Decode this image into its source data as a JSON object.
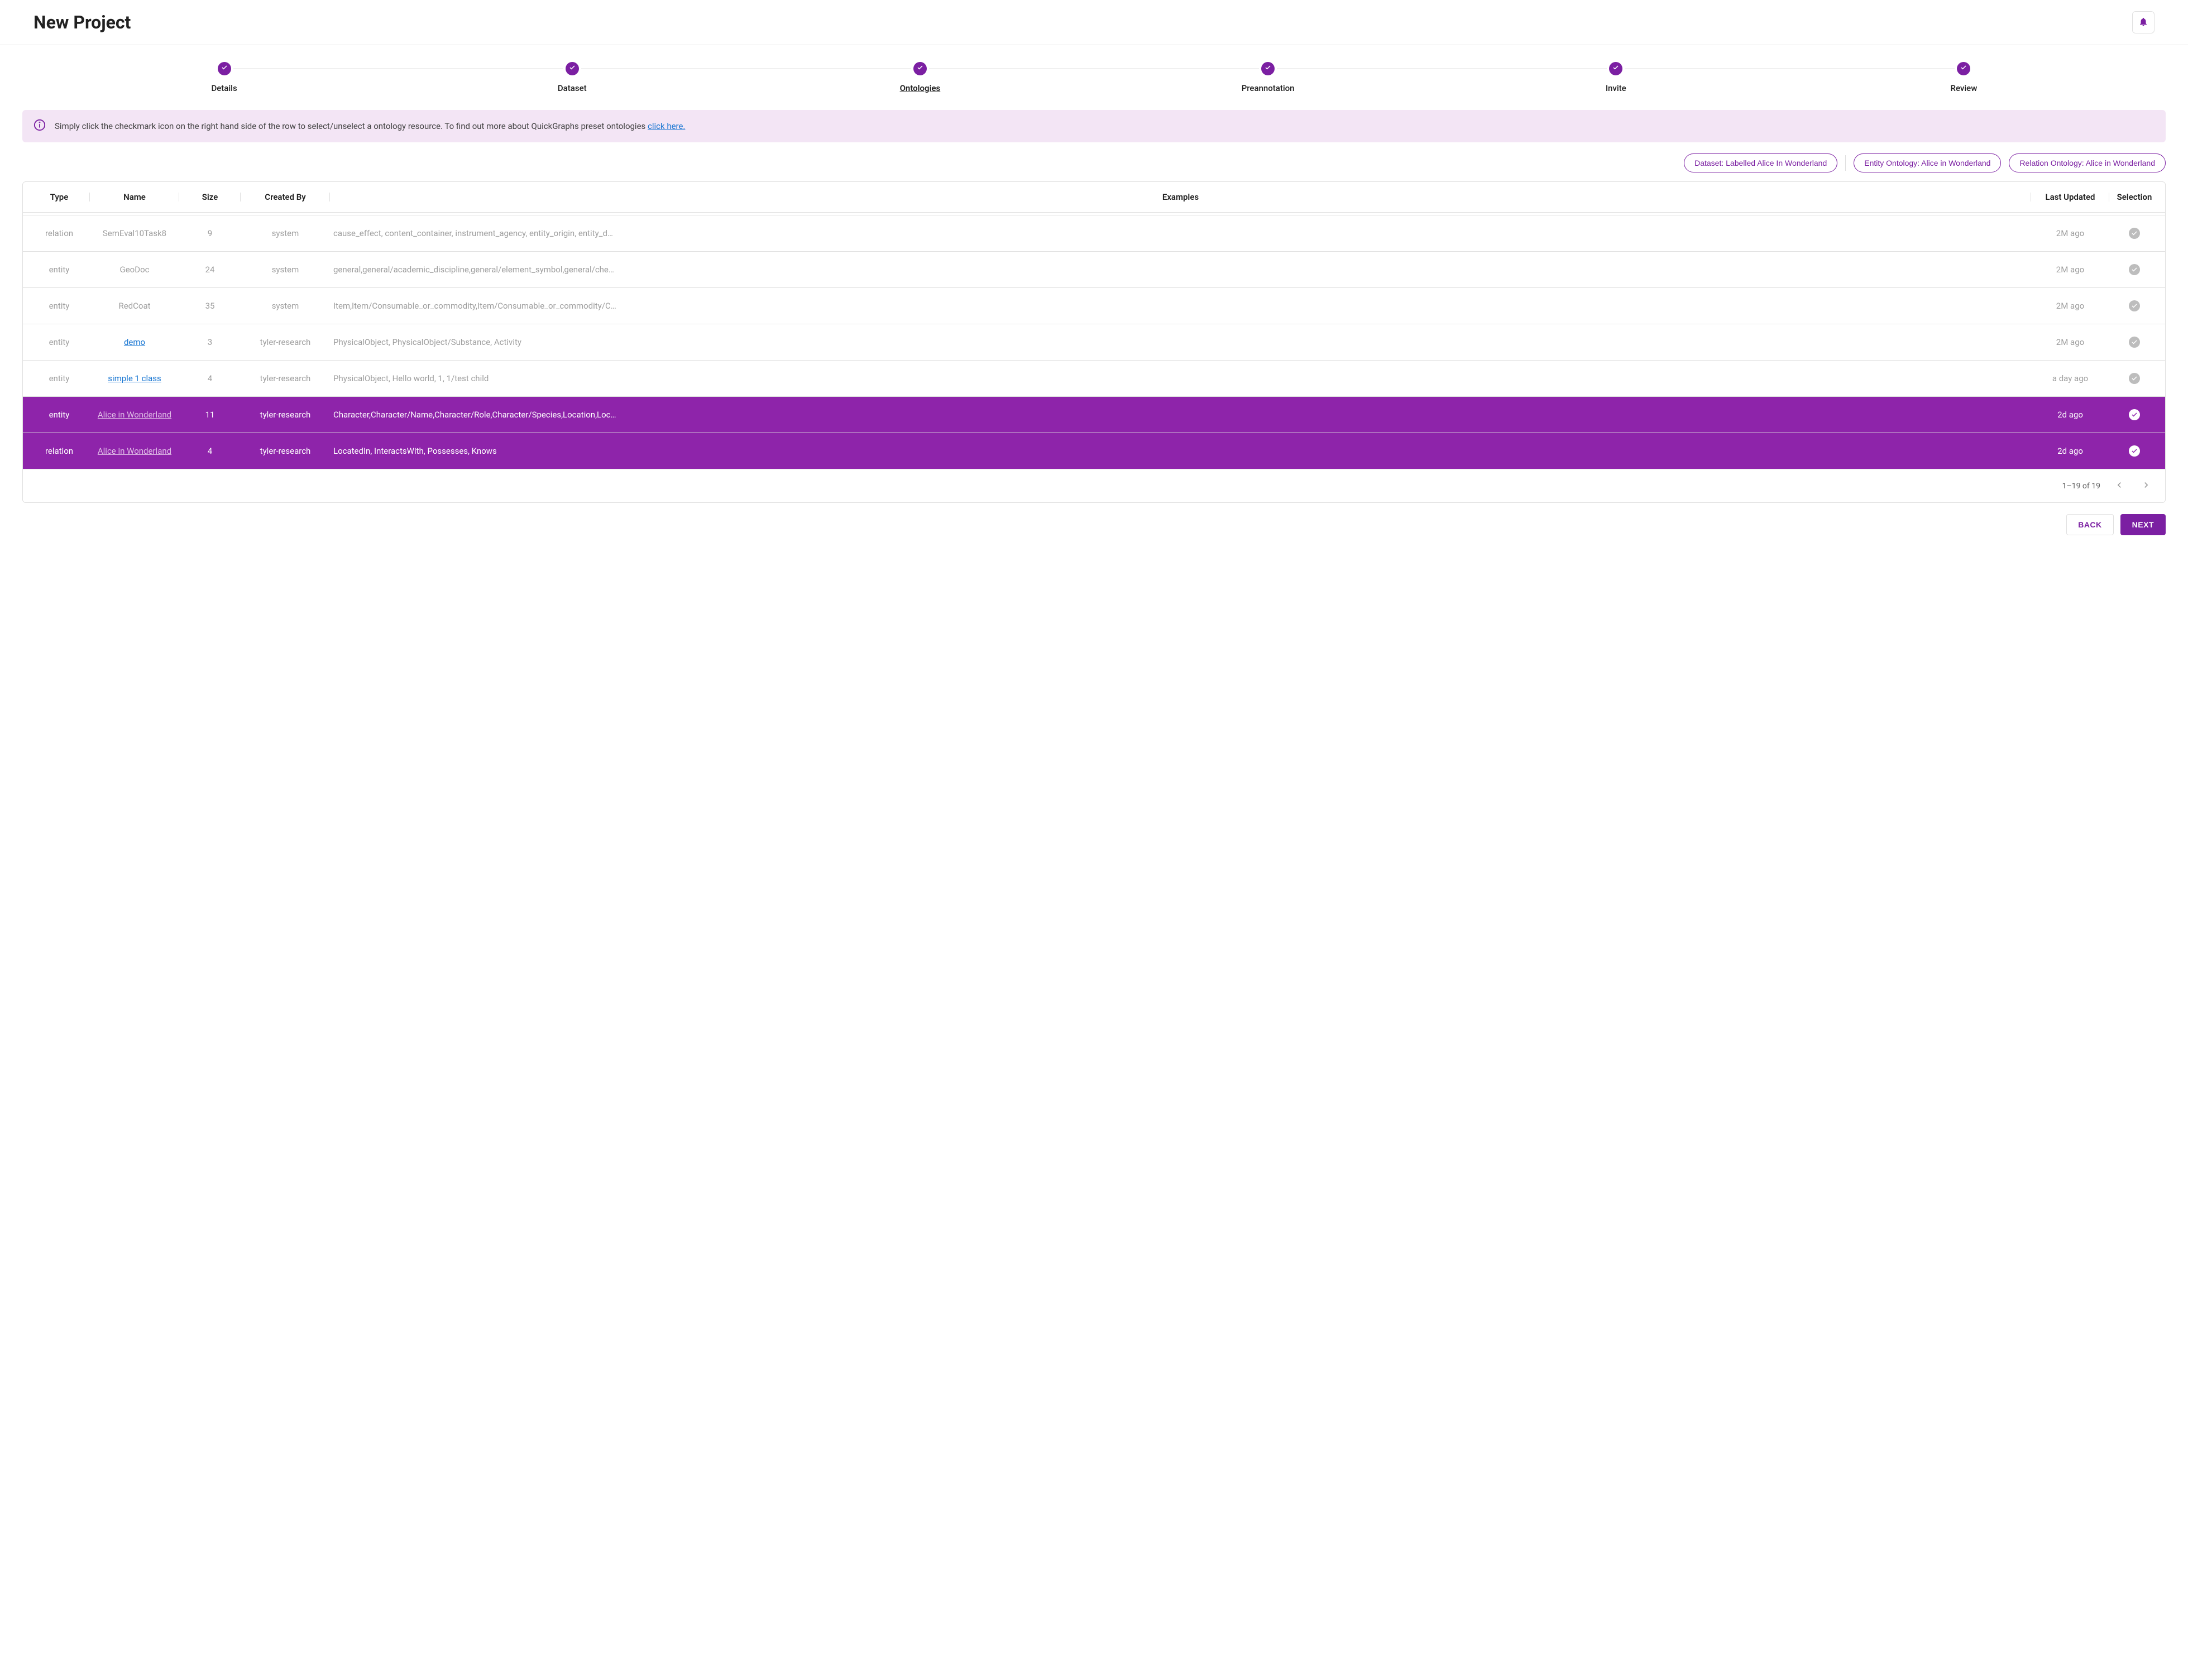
{
  "header": {
    "title": "New Project"
  },
  "stepper": {
    "steps": [
      {
        "label": "Details",
        "active": false
      },
      {
        "label": "Dataset",
        "active": false
      },
      {
        "label": "Ontologies",
        "active": true
      },
      {
        "label": "Preannotation",
        "active": false
      },
      {
        "label": "Invite",
        "active": false
      },
      {
        "label": "Review",
        "active": false
      }
    ]
  },
  "info_banner": {
    "text": "Simply click the checkmark icon on the right hand side of the row to select/unselect a ontology resource. To find out more about QuickGraphs preset ontologies ",
    "link_text": "click here."
  },
  "chips": {
    "dataset": "Dataset: Labelled Alice In Wonderland",
    "entity": "Entity Ontology: Alice in Wonderland",
    "relation": "Relation Ontology: Alice in Wonderland"
  },
  "table": {
    "columns": [
      "Type",
      "Name",
      "Size",
      "Created By",
      "Examples",
      "Last Updated",
      "Selection"
    ],
    "rows": [
      {
        "type": "relation",
        "name": "SemEval10Task8",
        "name_link": false,
        "size": "9",
        "created_by": "system",
        "examples": "cause_effect, content_container, instrument_agency, entity_origin, entity_d…",
        "updated": "2M ago",
        "selected": false
      },
      {
        "type": "entity",
        "name": "GeoDoc",
        "name_link": false,
        "size": "24",
        "created_by": "system",
        "examples": "general,general/academic_discipline,general/element_symbol,general/che…",
        "updated": "2M ago",
        "selected": false
      },
      {
        "type": "entity",
        "name": "RedCoat",
        "name_link": false,
        "size": "35",
        "created_by": "system",
        "examples": "Item,Item/Consumable_or_commodity,Item/Consumable_or_commodity/C…",
        "updated": "2M ago",
        "selected": false
      },
      {
        "type": "entity",
        "name": "demo",
        "name_link": true,
        "size": "3",
        "created_by": "tyler-research",
        "examples": "PhysicalObject, PhysicalObject/Substance, Activity",
        "updated": "2M ago",
        "selected": false
      },
      {
        "type": "entity",
        "name": "simple 1 class",
        "name_link": true,
        "size": "4",
        "created_by": "tyler-research",
        "examples": "PhysicalObject, Hello world, 1, 1/test child",
        "updated": "a day ago",
        "selected": false
      },
      {
        "type": "entity",
        "name": "Alice in Wonderland",
        "name_link": true,
        "size": "11",
        "created_by": "tyler-research",
        "examples": "Character,Character/Name,Character/Role,Character/Species,Location,Loc…",
        "updated": "2d ago",
        "selected": true
      },
      {
        "type": "relation",
        "name": "Alice in Wonderland",
        "name_link": true,
        "size": "4",
        "created_by": "tyler-research",
        "examples": "LocatedIn, InteractsWith, Possesses, Knows",
        "updated": "2d ago",
        "selected": true
      }
    ],
    "pagination": "1–19 of 19"
  },
  "actions": {
    "back": "BACK",
    "next": "NEXT"
  },
  "colors": {
    "primary": "#7b1fa2",
    "selected_row": "#8e24aa",
    "banner_bg": "#f3e5f5",
    "link": "#1976d2",
    "muted": "#9e9e9e",
    "border": "#e0e0e0"
  }
}
